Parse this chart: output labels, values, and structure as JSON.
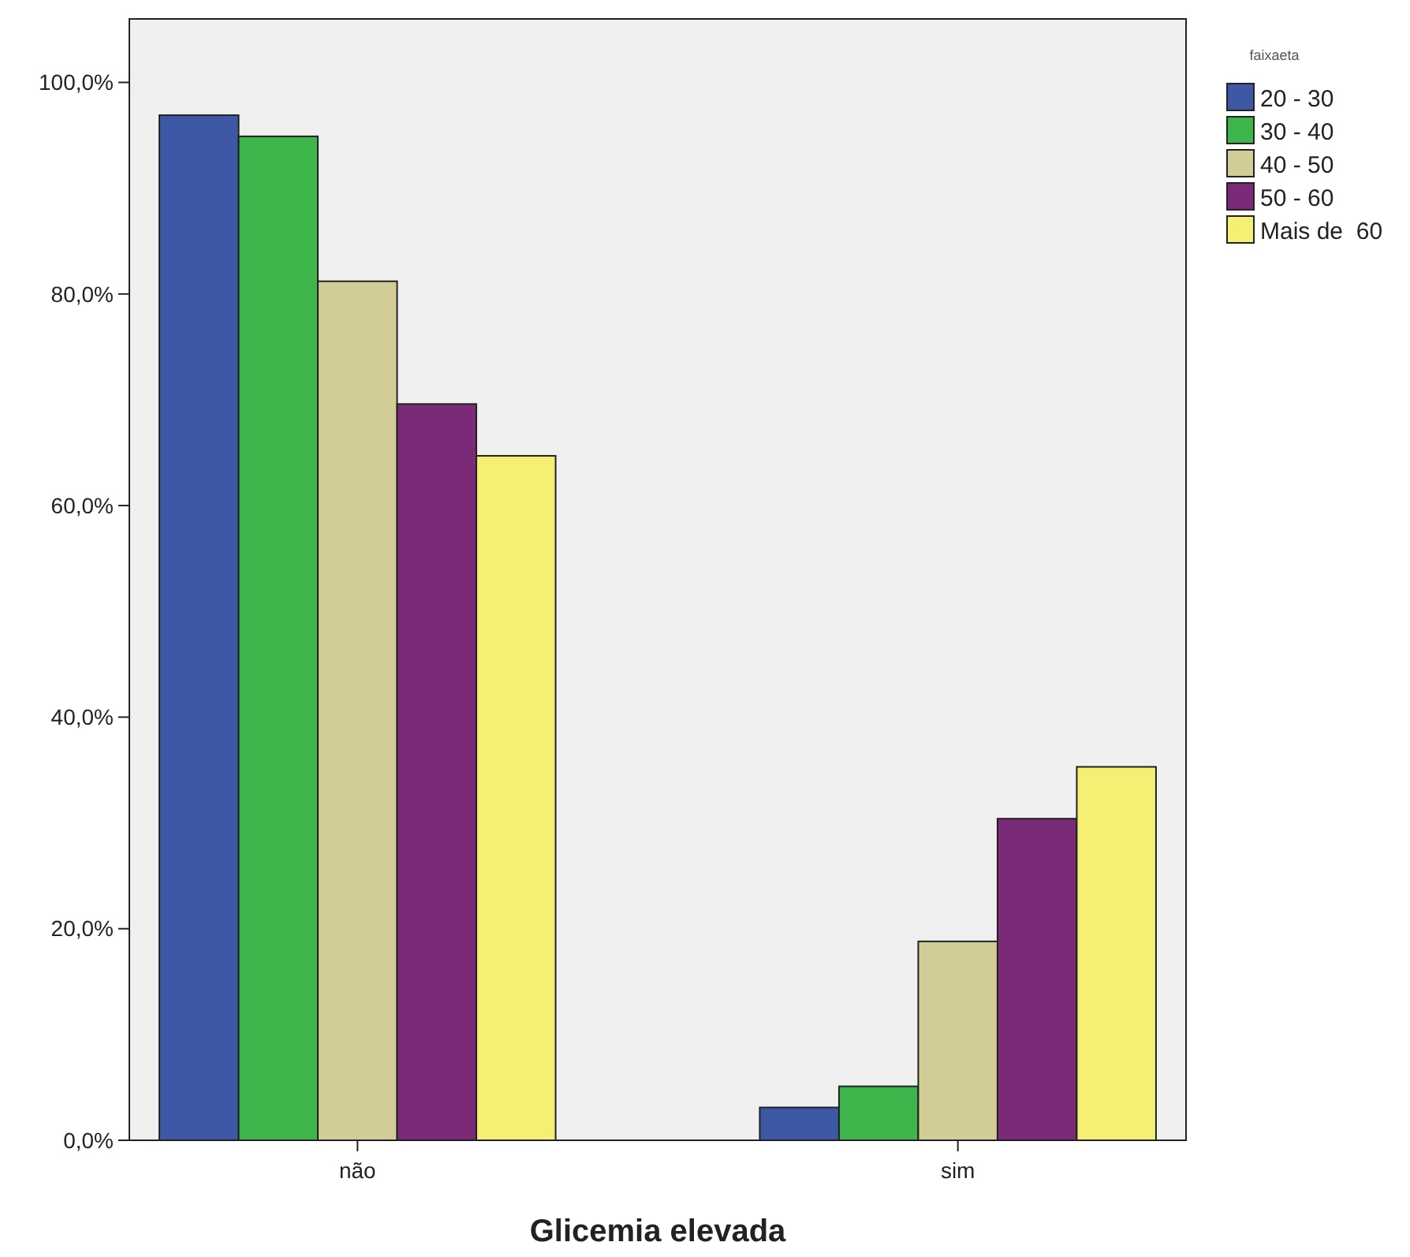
{
  "chart_data": {
    "type": "bar",
    "xlabel": "Glicemia elevada",
    "legend_title": "faixaeta",
    "categories": [
      "não",
      "sim"
    ],
    "series": [
      {
        "name": "20 - 30",
        "color": "#3e58a6",
        "values": [
          96.9,
          3.1
        ]
      },
      {
        "name": "30 - 40",
        "color": "#3db54a",
        "values": [
          94.9,
          5.1
        ]
      },
      {
        "name": "40 - 50",
        "color": "#d2cc96",
        "values": [
          81.2,
          18.8
        ]
      },
      {
        "name": "50 - 60",
        "color": "#7b2a78",
        "values": [
          69.6,
          30.4
        ]
      },
      {
        "name": "Mais de  60",
        "color": "#f5ef74",
        "values": [
          64.7,
          35.3
        ]
      }
    ],
    "ylim": [
      0,
      106
    ],
    "yticks": [
      {
        "value": 0,
        "label": "0,0%"
      },
      {
        "value": 20,
        "label": "20,0%"
      },
      {
        "value": 40,
        "label": "40,0%"
      },
      {
        "value": 60,
        "label": "60,0%"
      },
      {
        "value": 80,
        "label": "80,0%"
      },
      {
        "value": 100,
        "label": "100,0%"
      }
    ],
    "grid": false,
    "legend": "top right"
  }
}
